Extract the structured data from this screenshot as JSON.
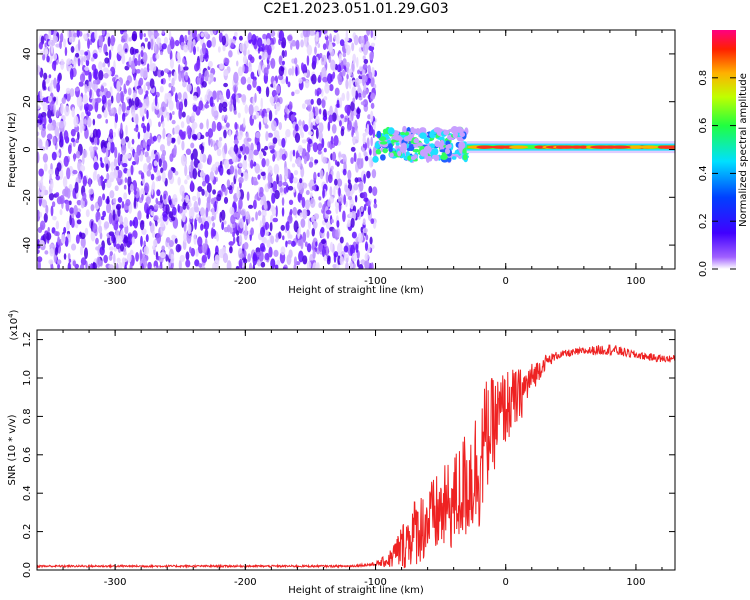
{
  "title": "C2E1.2023.051.01.29.G03",
  "colors": {
    "snr_line": "#ee2222",
    "spectrogram_noise": "#8a2be2",
    "colorbar": [
      "#ff00ff",
      "#ff0000",
      "#ffa500",
      "#ffff00",
      "#00ff00",
      "#00ffff",
      "#0000ff",
      "#8a2be2",
      "#ffffff"
    ]
  },
  "chart_data": [
    {
      "type": "heatmap",
      "title": "C2E1.2023.051.01.29.G03",
      "xlabel": "Height of straight line (km)",
      "ylabel": "Frequency (Hz)",
      "xlim": [
        -360,
        130
      ],
      "ylim": [
        -50,
        50
      ],
      "xticks": [
        -300,
        -200,
        -100,
        0,
        100
      ],
      "xtick_labels": [
        "-300",
        "-200",
        "-100",
        "0",
        "100"
      ],
      "yticks": [
        -40,
        -20,
        0,
        20,
        40
      ],
      "ytick_labels": [
        "-40",
        "-20",
        "0",
        "20",
        "40"
      ],
      "colorbar": {
        "label": "Normalized spectral amplitude",
        "range": [
          0.0,
          1.0
        ],
        "ticks": [
          0.0,
          0.2,
          0.4,
          0.6,
          0.8
        ],
        "tick_labels": [
          "0.0",
          "0.2",
          "0.4",
          "0.6",
          "0.8"
        ]
      },
      "features": [
        {
          "x_range": [
            -360,
            -100
          ],
          "frequency_range": [
            -50,
            50
          ],
          "amplitude": 0.1,
          "kind": "broadband noise"
        },
        {
          "x_range": [
            -100,
            -30
          ],
          "frequency_center": 2,
          "frequency_width": 8,
          "amplitude": 0.4
        },
        {
          "x_range": [
            -30,
            130
          ],
          "frequency_center": 1,
          "frequency_width": 3,
          "amplitude": 0.85
        }
      ]
    },
    {
      "type": "line",
      "xlabel": "Height of straight line (km)",
      "ylabel": "SNR (10 * v/v)",
      "y_multiplier": "(x10^4)",
      "xlim": [
        -360,
        130
      ],
      "ylim": [
        0.0,
        1.25
      ],
      "xticks": [
        -300,
        -200,
        -100,
        0,
        100
      ],
      "xtick_labels": [
        "-300",
        "-200",
        "-100",
        "0",
        "100"
      ],
      "yticks": [
        0.0,
        0.2,
        0.4,
        0.6,
        0.8,
        1.0,
        1.2
      ],
      "ytick_labels": [
        "0.0",
        "0.2",
        "0.4",
        "0.6",
        "0.8",
        "1.0",
        "1.2"
      ],
      "series": [
        {
          "x": [
            -360,
            -300,
            -250,
            -200,
            -150,
            -120,
            -100,
            -90,
            -80,
            -70,
            -60,
            -50,
            -40,
            -30,
            -20,
            -15,
            -10,
            0,
            10,
            20,
            30,
            40,
            60,
            80,
            100,
            120,
            130
          ],
          "values": [
            0.02,
            0.02,
            0.02,
            0.02,
            0.02,
            0.02,
            0.03,
            0.05,
            0.12,
            0.2,
            0.25,
            0.3,
            0.35,
            0.45,
            0.55,
            0.7,
            0.75,
            0.85,
            0.9,
            1.0,
            1.08,
            1.12,
            1.14,
            1.15,
            1.12,
            1.1,
            1.1
          ],
          "noise_amplitude": [
            0.005,
            0.005,
            0.005,
            0.005,
            0.005,
            0.005,
            0.01,
            0.04,
            0.12,
            0.18,
            0.2,
            0.22,
            0.25,
            0.3,
            0.35,
            0.3,
            0.25,
            0.2,
            0.15,
            0.08,
            0.04,
            0.02,
            0.02,
            0.03,
            0.02,
            0.02,
            0.02
          ]
        }
      ]
    }
  ]
}
